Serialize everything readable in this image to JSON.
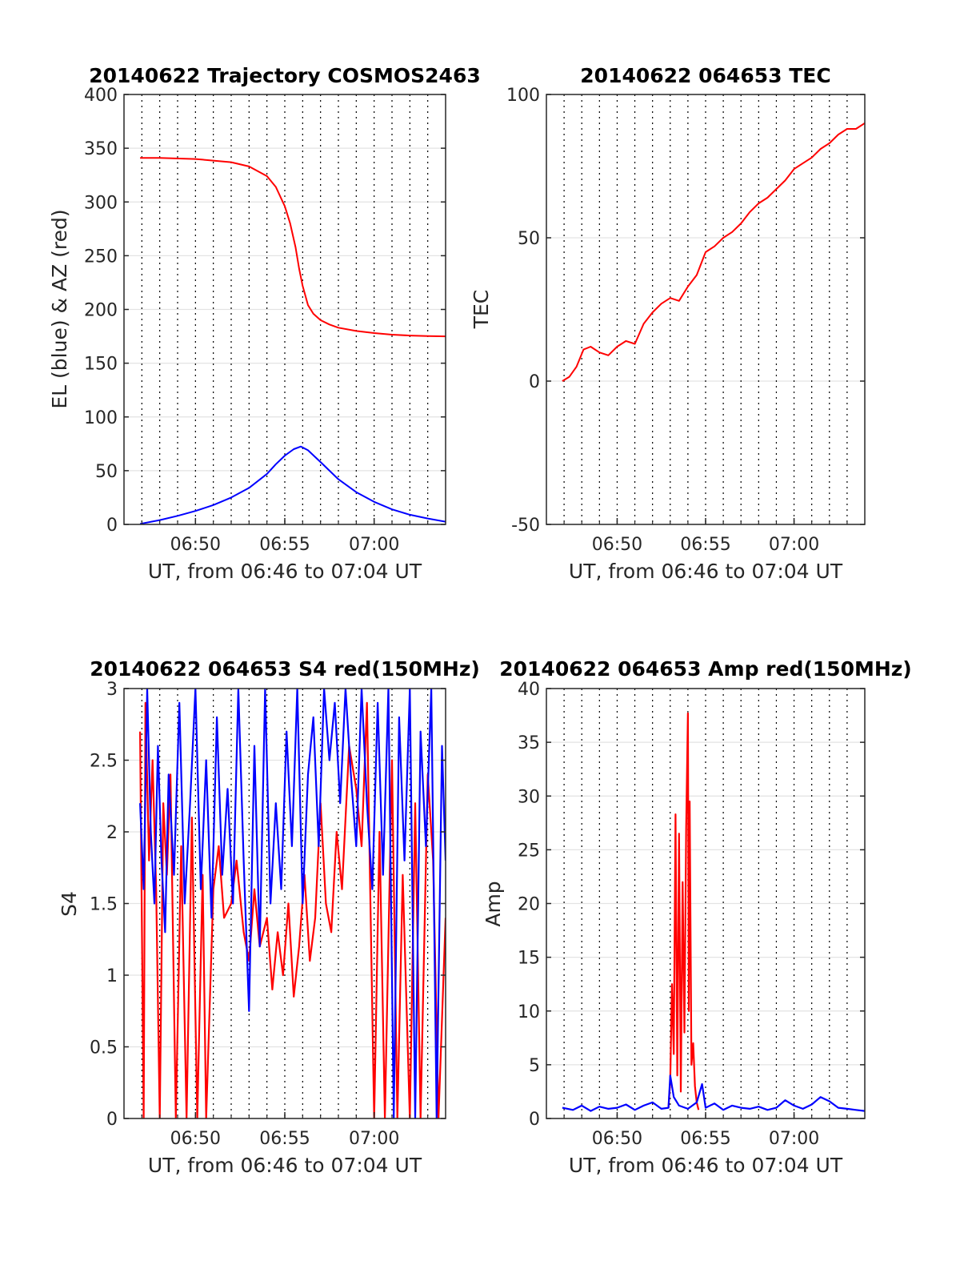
{
  "colors": {
    "el": "#0000ff",
    "az": "#ff0000",
    "red": "#ff0000",
    "blue": "#0000ff",
    "grid_h": "#e3e3e3",
    "grid_v": "#000000",
    "axis": "#262626"
  },
  "chart_data": [
    {
      "type": "line",
      "title": "20140622 Trajectory COSMOS2463",
      "xlabel": "UT, from 06:46 to 07:04 UT",
      "ylabel": "EL (blue) & AZ (red)",
      "xlim_minutes": [
        46,
        64
      ],
      "ylim": [
        0,
        400
      ],
      "xticks": [
        {
          "value": 50,
          "label": "06:50"
        },
        {
          "value": 55,
          "label": "06:55"
        },
        {
          "value": 60,
          "label": "07:00"
        }
      ],
      "yticks": [
        0,
        50,
        100,
        150,
        200,
        250,
        300,
        350,
        400
      ],
      "grid": "dotted vertical every minute, light horizontal",
      "series": [
        {
          "color": "#ff0000",
          "x": [
            46.9,
            48,
            50,
            52,
            53,
            54,
            54.5,
            55,
            55.3,
            55.6,
            55.8,
            56,
            56.3,
            56.6,
            57,
            57.5,
            58,
            59,
            60,
            61,
            62,
            63,
            64
          ],
          "y": [
            341,
            341,
            340,
            337,
            333,
            324,
            314,
            296,
            280,
            258,
            238,
            222,
            204,
            196,
            190,
            186,
            183,
            180,
            178,
            176.5,
            175.7,
            175.2,
            175
          ]
        },
        {
          "color": "#0000ff",
          "x": [
            46.9,
            48,
            49,
            50,
            51,
            52,
            53,
            54,
            54.5,
            55,
            55.5,
            55.9,
            56.3,
            57,
            58,
            59,
            60,
            61,
            62,
            63,
            64
          ],
          "y": [
            0.5,
            4,
            8,
            12.5,
            18,
            25,
            34,
            47,
            56,
            64,
            70,
            72.5,
            69,
            58,
            42,
            30,
            21,
            14,
            9,
            5.5,
            2.5
          ]
        }
      ]
    },
    {
      "type": "line",
      "title": "20140622 064653 TEC",
      "xlabel": "UT, from 06:46 to 07:04 UT",
      "ylabel": "TEC",
      "xlim_minutes": [
        46,
        64
      ],
      "ylim": [
        -50,
        100
      ],
      "xticks": [
        {
          "value": 50,
          "label": "06:50"
        },
        {
          "value": 55,
          "label": "06:55"
        },
        {
          "value": 60,
          "label": "07:00"
        }
      ],
      "yticks": [
        -50,
        0,
        50,
        100
      ],
      "grid": "dotted vertical every minute, light horizontal",
      "series": [
        {
          "color": "#ff0000",
          "x": [
            46.9,
            47.3,
            47.7,
            48.1,
            48.5,
            49,
            49.5,
            50,
            50.5,
            51,
            51.5,
            52,
            52.5,
            53,
            53.5,
            54,
            54.5,
            55,
            55.5,
            56,
            56.5,
            57,
            57.5,
            58,
            58.5,
            59,
            59.5,
            60,
            60.5,
            61,
            61.5,
            62,
            62.5,
            63,
            63.5,
            64
          ],
          "y": [
            0,
            1.5,
            5,
            11,
            12,
            10,
            9,
            12,
            14,
            13,
            20,
            24,
            27,
            29,
            28,
            33,
            37,
            45,
            47,
            50,
            52,
            55,
            59,
            62,
            64,
            67,
            70,
            74,
            76,
            78,
            81,
            83,
            86,
            88,
            88,
            90
          ]
        }
      ]
    },
    {
      "type": "line",
      "title": "20140622 064653 S4 red(150MHz)",
      "xlabel": "UT, from 06:46 to 07:04 UT",
      "ylabel": "S4",
      "xlim_minutes": [
        46,
        64
      ],
      "ylim": [
        0,
        3
      ],
      "xticks": [
        {
          "value": 50,
          "label": "06:50"
        },
        {
          "value": 55,
          "label": "06:55"
        },
        {
          "value": 60,
          "label": "07:00"
        }
      ],
      "yticks": [
        0,
        0.5,
        1,
        1.5,
        2,
        2.5,
        3
      ],
      "grid": "dotted vertical every minute, light horizontal",
      "series": [
        {
          "color": "#ff0000",
          "x": [
            46.9,
            47.1,
            47.2,
            47.4,
            47.6,
            47.8,
            48,
            48.2,
            48.4,
            48.6,
            48.9,
            49.2,
            49.5,
            49.8,
            50.1,
            50.4,
            50.6,
            51,
            51.3,
            51.6,
            52,
            52.3,
            52.7,
            53,
            53.3,
            53.6,
            54,
            54.3,
            54.6,
            54.9,
            55.2,
            55.5,
            55.8,
            56.1,
            56.4,
            56.7,
            57,
            57.3,
            57.6,
            57.9,
            58.2,
            58.6,
            59,
            59.3,
            59.6,
            60,
            60.3,
            60.6,
            61,
            61.3,
            61.6,
            62,
            62.3,
            62.6,
            63,
            63.3,
            63.6,
            64
          ],
          "y": [
            2.7,
            0,
            2.9,
            1.8,
            2.5,
            1.6,
            0,
            2.2,
            1.7,
            2.4,
            0,
            1.9,
            0,
            2.1,
            0,
            1.7,
            0,
            1.6,
            1.9,
            1.4,
            1.5,
            1.8,
            1.3,
            1.1,
            1.6,
            1.2,
            1.4,
            0.9,
            1.3,
            1.0,
            1.5,
            0.85,
            1.2,
            1.7,
            1.1,
            1.4,
            2.2,
            1.5,
            1.3,
            2.0,
            1.6,
            2.6,
            2.3,
            1.9,
            2.9,
            0,
            2.0,
            0,
            2.5,
            0,
            1.7,
            0,
            2.2,
            0,
            2.4,
            1.8,
            0,
            1.4
          ]
        },
        {
          "color": "#0000ff",
          "x": [
            46.9,
            47.1,
            47.3,
            47.5,
            47.7,
            47.9,
            48.1,
            48.3,
            48.5,
            48.8,
            49.1,
            49.4,
            49.7,
            50,
            50.3,
            50.6,
            50.9,
            51.2,
            51.5,
            51.8,
            52.1,
            52.4,
            52.7,
            53,
            53.3,
            53.6,
            53.9,
            54.2,
            54.5,
            54.8,
            55.1,
            55.4,
            55.7,
            56,
            56.3,
            56.6,
            56.9,
            57.2,
            57.5,
            57.8,
            58.1,
            58.4,
            58.7,
            59,
            59.3,
            59.6,
            59.9,
            60.2,
            60.5,
            60.8,
            61.1,
            61.4,
            61.7,
            62,
            62.3,
            62.6,
            62.9,
            63.2,
            63.5,
            63.8,
            64
          ],
          "y": [
            2.2,
            1.6,
            3.0,
            2.0,
            1.5,
            2.6,
            1.8,
            1.3,
            2.4,
            1.7,
            2.9,
            1.5,
            2.2,
            3.0,
            1.6,
            2.5,
            1.4,
            2.8,
            1.7,
            2.3,
            1.5,
            3.0,
            1.8,
            0.75,
            2.6,
            1.2,
            3.0,
            1.5,
            2.2,
            1.6,
            2.7,
            1.9,
            3.0,
            1.5,
            2.4,
            2.8,
            1.9,
            3.0,
            2.5,
            2.9,
            2.2,
            3.0,
            2.4,
            1.9,
            3.0,
            2.2,
            1.6,
            2.9,
            1.7,
            3.0,
            0,
            2.8,
            1.8,
            3.0,
            0,
            2.7,
            1.9,
            3.0,
            0,
            2.6,
            1.8
          ]
        }
      ]
    },
    {
      "type": "line",
      "title": "20140622 064653 Amp red(150MHz)",
      "xlabel": "UT, from 06:46 to 07:04 UT",
      "ylabel": "Amp",
      "xlim_minutes": [
        46,
        64
      ],
      "ylim": [
        0,
        40
      ],
      "xticks": [
        {
          "value": 50,
          "label": "06:50"
        },
        {
          "value": 55,
          "label": "06:55"
        },
        {
          "value": 60,
          "label": "07:00"
        }
      ],
      "yticks": [
        0,
        5,
        10,
        15,
        20,
        25,
        30,
        35,
        40
      ],
      "grid": "dotted vertical every minute, light horizontal",
      "series": [
        {
          "color": "#ff0000",
          "x": [
            52.9,
            53.0,
            53.1,
            53.2,
            53.3,
            53.4,
            53.5,
            53.6,
            53.7,
            53.8,
            53.9,
            54.0,
            54.05,
            54.1,
            54.2,
            54.3,
            54.4,
            54.5,
            54.6
          ],
          "y": [
            1.0,
            3.5,
            12.5,
            6.0,
            28.3,
            4.0,
            26.5,
            2.5,
            22.0,
            8.0,
            27.0,
            37.7,
            10.0,
            29.5,
            5.0,
            7.0,
            3.0,
            1.5,
            0.8
          ]
        },
        {
          "color": "#0000ff",
          "x": [
            46.9,
            47.5,
            48,
            48.5,
            49,
            49.5,
            50,
            50.5,
            51,
            51.5,
            52,
            52.5,
            52.9,
            53,
            53.2,
            53.5,
            54,
            54.5,
            54.8,
            55,
            55.5,
            56,
            56.5,
            57,
            57.5,
            58,
            58.5,
            59,
            59.5,
            60,
            60.5,
            61,
            61.5,
            62,
            62.5,
            63,
            63.5,
            64
          ],
          "y": [
            1.0,
            0.8,
            1.2,
            0.7,
            1.1,
            0.9,
            1.0,
            1.3,
            0.8,
            1.2,
            1.5,
            0.9,
            1.0,
            4.0,
            2.0,
            1.2,
            0.9,
            1.5,
            3.2,
            1.0,
            1.4,
            0.8,
            1.2,
            1.0,
            0.9,
            1.1,
            0.8,
            1.0,
            1.7,
            1.2,
            0.9,
            1.3,
            2.0,
            1.6,
            1.0,
            0.9,
            0.8,
            0.7
          ]
        }
      ]
    }
  ]
}
